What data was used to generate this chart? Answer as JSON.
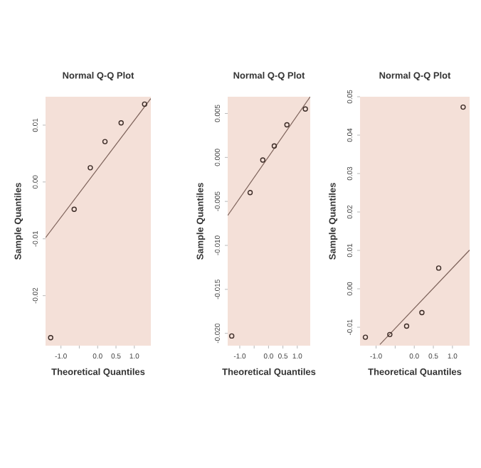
{
  "chart_data": [
    {
      "type": "scatter",
      "title": "Normal Q-Q Plot",
      "xlabel": "Theoretical Quantiles",
      "ylabel": "Sample Quantiles",
      "xlim": [
        -1.42,
        1.45
      ],
      "ylim": [
        -0.0288,
        0.015
      ],
      "xticks": [
        {
          "value": -1.0,
          "label": "-1.0"
        },
        {
          "value": -0.5,
          "label": null
        },
        {
          "value": 0.0,
          "label": "0.0"
        },
        {
          "value": 0.5,
          "label": "0.5"
        },
        {
          "value": 1.0,
          "label": "1.0"
        }
      ],
      "yticks": [
        -0.02,
        -0.01,
        {
          "value": 0.0,
          "label": "0.00"
        },
        0.01
      ],
      "series": [
        {
          "type": "scatter",
          "marker": "circle",
          "color": "#3a2a25",
          "x": [
            -1.28,
            -0.64,
            -0.2,
            0.2,
            0.64,
            1.28
          ],
          "values": [
            -0.0274,
            -0.0048,
            0.0025,
            0.0071,
            0.0104,
            0.0137
          ]
        },
        {
          "type": "line",
          "color": "#7d625a",
          "x": [
            -1.42,
            1.45
          ],
          "values": [
            -0.0098,
            0.0147
          ]
        }
      ]
    },
    {
      "type": "scatter",
      "title": "Normal Q-Q Plot",
      "xlabel": "Theoretical Quantiles",
      "ylabel": "Sample Quantiles",
      "xlim": [
        -1.42,
        1.45
      ],
      "ylim": [
        -0.0214,
        0.0069
      ],
      "xticks": [
        {
          "value": -1.0,
          "label": "-1.0"
        },
        {
          "value": -0.5,
          "label": null
        },
        {
          "value": 0.0,
          "label": "0.0"
        },
        {
          "value": 0.5,
          "label": "0.5"
        },
        {
          "value": 1.0,
          "label": "1.0"
        }
      ],
      "yticks": [
        {
          "value": -0.02,
          "label": "-0.020"
        },
        -0.015,
        {
          "value": -0.01,
          "label": "-0.010"
        },
        -0.005,
        {
          "value": 0.0,
          "label": "0.000"
        },
        0.005
      ],
      "series": [
        {
          "type": "scatter",
          "marker": "circle",
          "color": "#3a2a25",
          "x": [
            -1.28,
            -0.64,
            -0.2,
            0.2,
            0.64,
            1.28
          ],
          "values": [
            -0.0203,
            -0.004,
            -0.0003,
            0.0013,
            0.0037,
            0.0055
          ]
        },
        {
          "type": "line",
          "color": "#7d625a",
          "x": [
            -1.42,
            1.45
          ],
          "values": [
            -0.0066,
            0.0069
          ]
        }
      ]
    },
    {
      "type": "scatter",
      "title": "Normal Q-Q Plot",
      "xlabel": "Theoretical Quantiles",
      "ylabel": "Sample Quantiles",
      "xlim": [
        -1.42,
        1.45
      ],
      "ylim": [
        -0.0148,
        0.05
      ],
      "xticks": [
        {
          "value": -1.0,
          "label": "-1.0"
        },
        {
          "value": -0.5,
          "label": null
        },
        {
          "value": 0.0,
          "label": "0.0"
        },
        {
          "value": 0.5,
          "label": "0.5"
        },
        {
          "value": 1.0,
          "label": "1.0"
        }
      ],
      "yticks": [
        -0.01,
        {
          "value": 0.0,
          "label": "0.00"
        },
        0.01,
        0.02,
        0.03,
        0.04,
        0.05
      ],
      "series": [
        {
          "type": "scatter",
          "marker": "circle",
          "color": "#3a2a25",
          "x": [
            -1.28,
            -0.64,
            -0.2,
            0.2,
            0.64,
            1.28
          ],
          "values": [
            -0.0126,
            -0.0119,
            -0.0097,
            -0.0062,
            0.0054,
            0.0473
          ]
        },
        {
          "type": "line",
          "color": "#7d625a",
          "x": [
            -0.9,
            1.45
          ],
          "values": [
            -0.0145,
            0.0101
          ]
        }
      ]
    }
  ]
}
